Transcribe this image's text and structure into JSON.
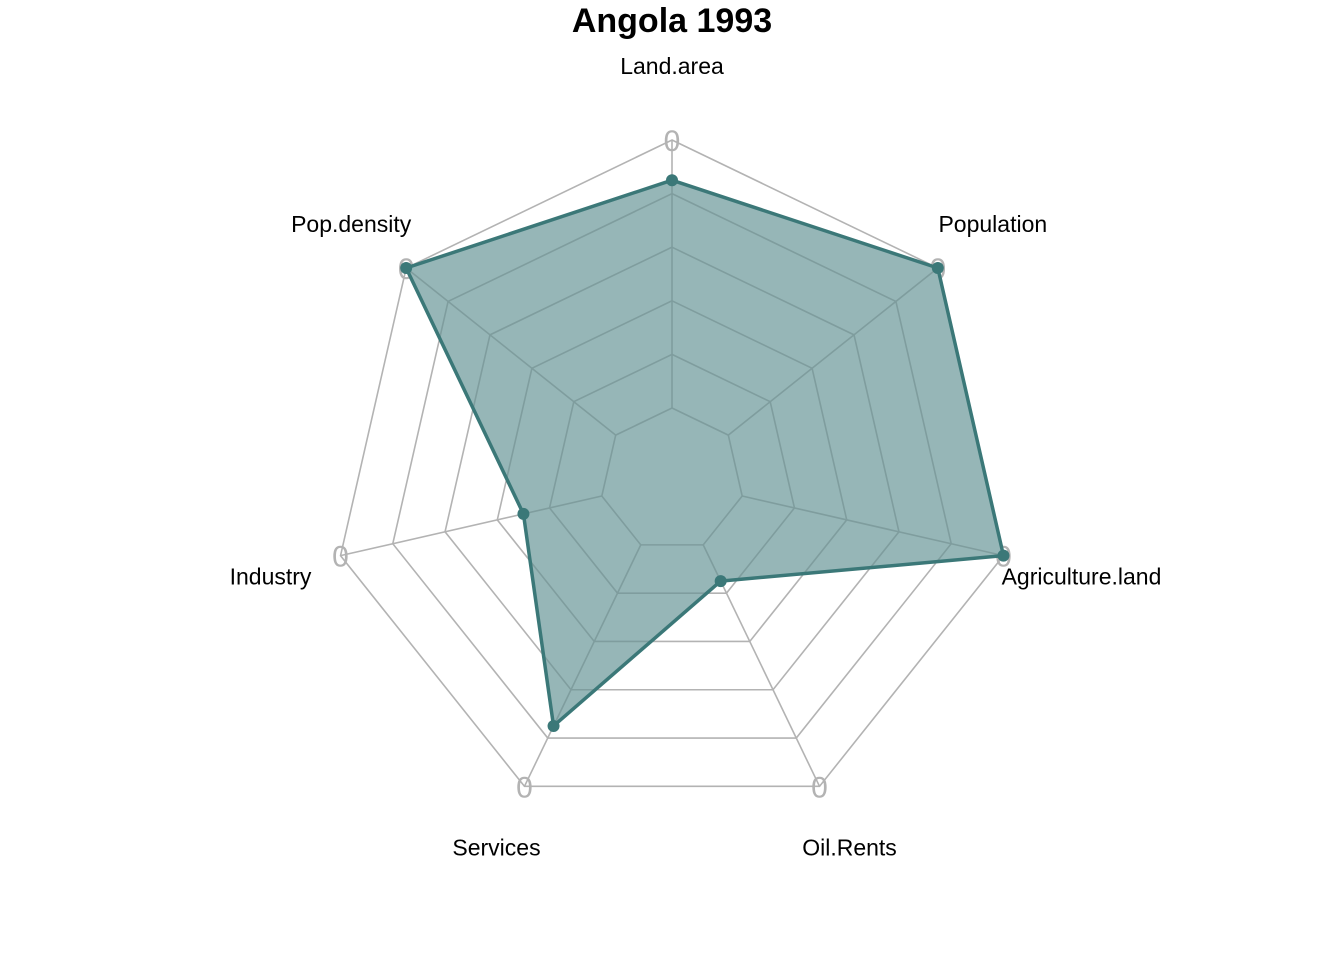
{
  "chart_data": {
    "type": "radar",
    "title": "Angola 1993",
    "axes": [
      "Land.area",
      "Population",
      "Agriculture.land",
      "Oil.Rents",
      "Services",
      "Industry",
      "Pop.density"
    ],
    "series": [
      {
        "values": [
          0.85,
          1.0,
          1.0,
          0.15,
          0.75,
          0.3,
          1.0
        ]
      }
    ],
    "range": [
      0,
      1
    ],
    "grid_levels": 5,
    "axis_tick_label": "0",
    "colors": {
      "series_line": "#3b7878",
      "series_fill": "#96b6b7",
      "grid": "#b3b3b3",
      "inner_grid": "#7f9d9e"
    }
  }
}
